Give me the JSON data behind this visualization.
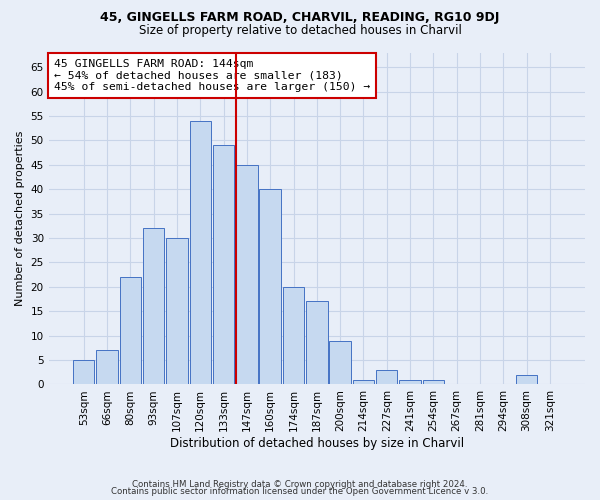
{
  "title": "45, GINGELLS FARM ROAD, CHARVIL, READING, RG10 9DJ",
  "subtitle": "Size of property relative to detached houses in Charvil",
  "xlabel": "Distribution of detached houses by size in Charvil",
  "ylabel": "Number of detached properties",
  "footer_lines": [
    "Contains HM Land Registry data © Crown copyright and database right 2024.",
    "Contains public sector information licensed under the Open Government Licence v 3.0."
  ],
  "annotation_lines": [
    "45 GINGELLS FARM ROAD: 144sqm",
    "← 54% of detached houses are smaller (183)",
    "45% of semi-detached houses are larger (150) →"
  ],
  "bar_labels": [
    "53sqm",
    "66sqm",
    "80sqm",
    "93sqm",
    "107sqm",
    "120sqm",
    "133sqm",
    "147sqm",
    "160sqm",
    "174sqm",
    "187sqm",
    "200sqm",
    "214sqm",
    "227sqm",
    "241sqm",
    "254sqm",
    "267sqm",
    "281sqm",
    "294sqm",
    "308sqm",
    "321sqm"
  ],
  "bar_values": [
    5,
    7,
    22,
    32,
    30,
    54,
    49,
    45,
    40,
    20,
    17,
    9,
    1,
    3,
    1,
    1,
    0,
    0,
    0,
    2,
    0
  ],
  "bar_color": "#c6d9f0",
  "bar_edge_color": "#4472c4",
  "vline_color": "#cc0000",
  "ylim": [
    0,
    68
  ],
  "yticks": [
    0,
    5,
    10,
    15,
    20,
    25,
    30,
    35,
    40,
    45,
    50,
    55,
    60,
    65
  ],
  "grid_color": "#c8d4e8",
  "annotation_box_color": "#ffffff",
  "annotation_box_edge": "#cc0000",
  "bg_color": "#e8eef8",
  "plot_bg_color": "#e8eef8",
  "title_fontsize": 9,
  "subtitle_fontsize": 8.5
}
